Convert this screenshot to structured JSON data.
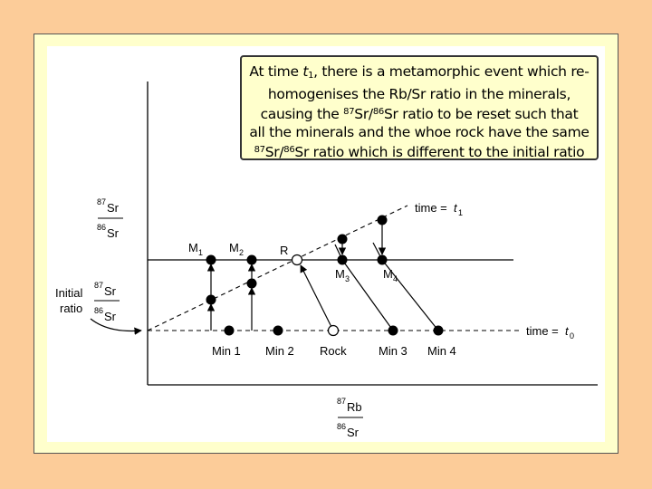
{
  "caption": {
    "line1_a": "At time ",
    "t_letter": "t",
    "t_sub": "1",
    "line1_b": ", there is a metamorphic event which re-",
    "line2": "homogenises the Rb/Sr ratio in the minerals,",
    "line3_a": "causing the ",
    "iso_87": "87",
    "el_sr": "Sr",
    "slash": "/",
    "iso_86": "86",
    "line3_b": " ratio to be reset such that",
    "line4": "all the minerals and the whoe rock have the same",
    "line5_b": " ratio which is different to the initial ratio"
  },
  "labels": {
    "y_top_iso": "87",
    "y_top_el": "Sr",
    "y_bot_iso": "86",
    "y_bot_el": "Sr",
    "initial_line1": "Initial",
    "initial_line2": "ratio",
    "init_iso_top": "87",
    "init_el_top": "Sr",
    "init_iso_bot": "86",
    "init_el_bot": "Sr",
    "x_top_iso": "87",
    "x_top_el": "Rb",
    "x_bot_iso": "86",
    "x_bot_el": "Sr",
    "time_t1_prefix": "time = ",
    "time_t1_letter": "t",
    "time_t1_sub": "1",
    "time_t0_prefix": "time = ",
    "time_t0_letter": "t",
    "time_t0_sub": "0",
    "m1": "M",
    "m1_sub": "1",
    "m2": "M",
    "m2_sub": "2",
    "r": "R",
    "m3": "M",
    "m3_sub": "3",
    "m4": "M",
    "m4_sub": "4",
    "min1": "Min 1",
    "min2": "Min 2",
    "rock": "Rock",
    "min3": "Min 3",
    "min4": "Min 4"
  },
  "colors": {
    "background": "#fccc99",
    "frame": "#ffffcc",
    "panel": "#ffffff",
    "ink": "#000000"
  }
}
